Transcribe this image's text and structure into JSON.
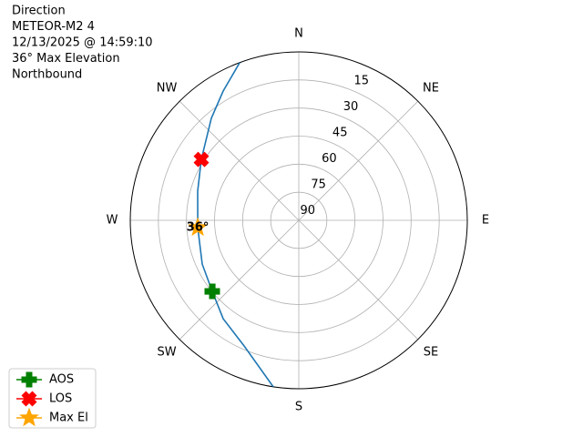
{
  "chart_data": {
    "type": "polar",
    "title_lines": [
      "Direction",
      "METEOR-M2 4",
      "12/13/2025 @ 14:59:10",
      "36° Max Elevation",
      "Northbound"
    ],
    "theta_zero": "N",
    "theta_direction": "clockwise",
    "rlim": [
      90,
      0
    ],
    "rticks": [
      15,
      30,
      45,
      60,
      75,
      90
    ],
    "thetaticks": [
      {
        "value": 0,
        "label": "N"
      },
      {
        "value": 45,
        "label": "NE"
      },
      {
        "value": 90,
        "label": "E"
      },
      {
        "value": 135,
        "label": "SE"
      },
      {
        "value": 180,
        "label": "S"
      },
      {
        "value": 225,
        "label": "SW"
      },
      {
        "value": 270,
        "label": "W"
      },
      {
        "value": 315,
        "label": "NW"
      }
    ],
    "grid": true,
    "track": {
      "color": "#1f77b4",
      "theta": [
        188.7,
        203.5,
        217.5,
        230.6,
        245.6,
        265.9,
        286.1,
        302,
        319.4,
        329.7,
        339.5
      ],
      "r": [
        0,
        16.8,
        23.7,
        30.2,
        33.4,
        35.9,
        33.8,
        28.6,
        18.2,
        10,
        0
      ]
    },
    "markers": [
      {
        "name": "AOS",
        "color": "#008000",
        "marker": "plus",
        "theta": [
          230.6
        ],
        "r": [
          30.2
        ]
      },
      {
        "name": "LOS",
        "color": "#ff0000",
        "marker": "x",
        "theta": [
          302
        ],
        "r": [
          28.6
        ]
      },
      {
        "name": "Max El",
        "color": "#ffa500",
        "marker": "star",
        "theta": [
          265.9
        ],
        "r": [
          35.9
        ]
      }
    ],
    "annotation": {
      "text": "36°",
      "theta": 265.9,
      "r": 35.9
    },
    "legend": "lower left"
  }
}
